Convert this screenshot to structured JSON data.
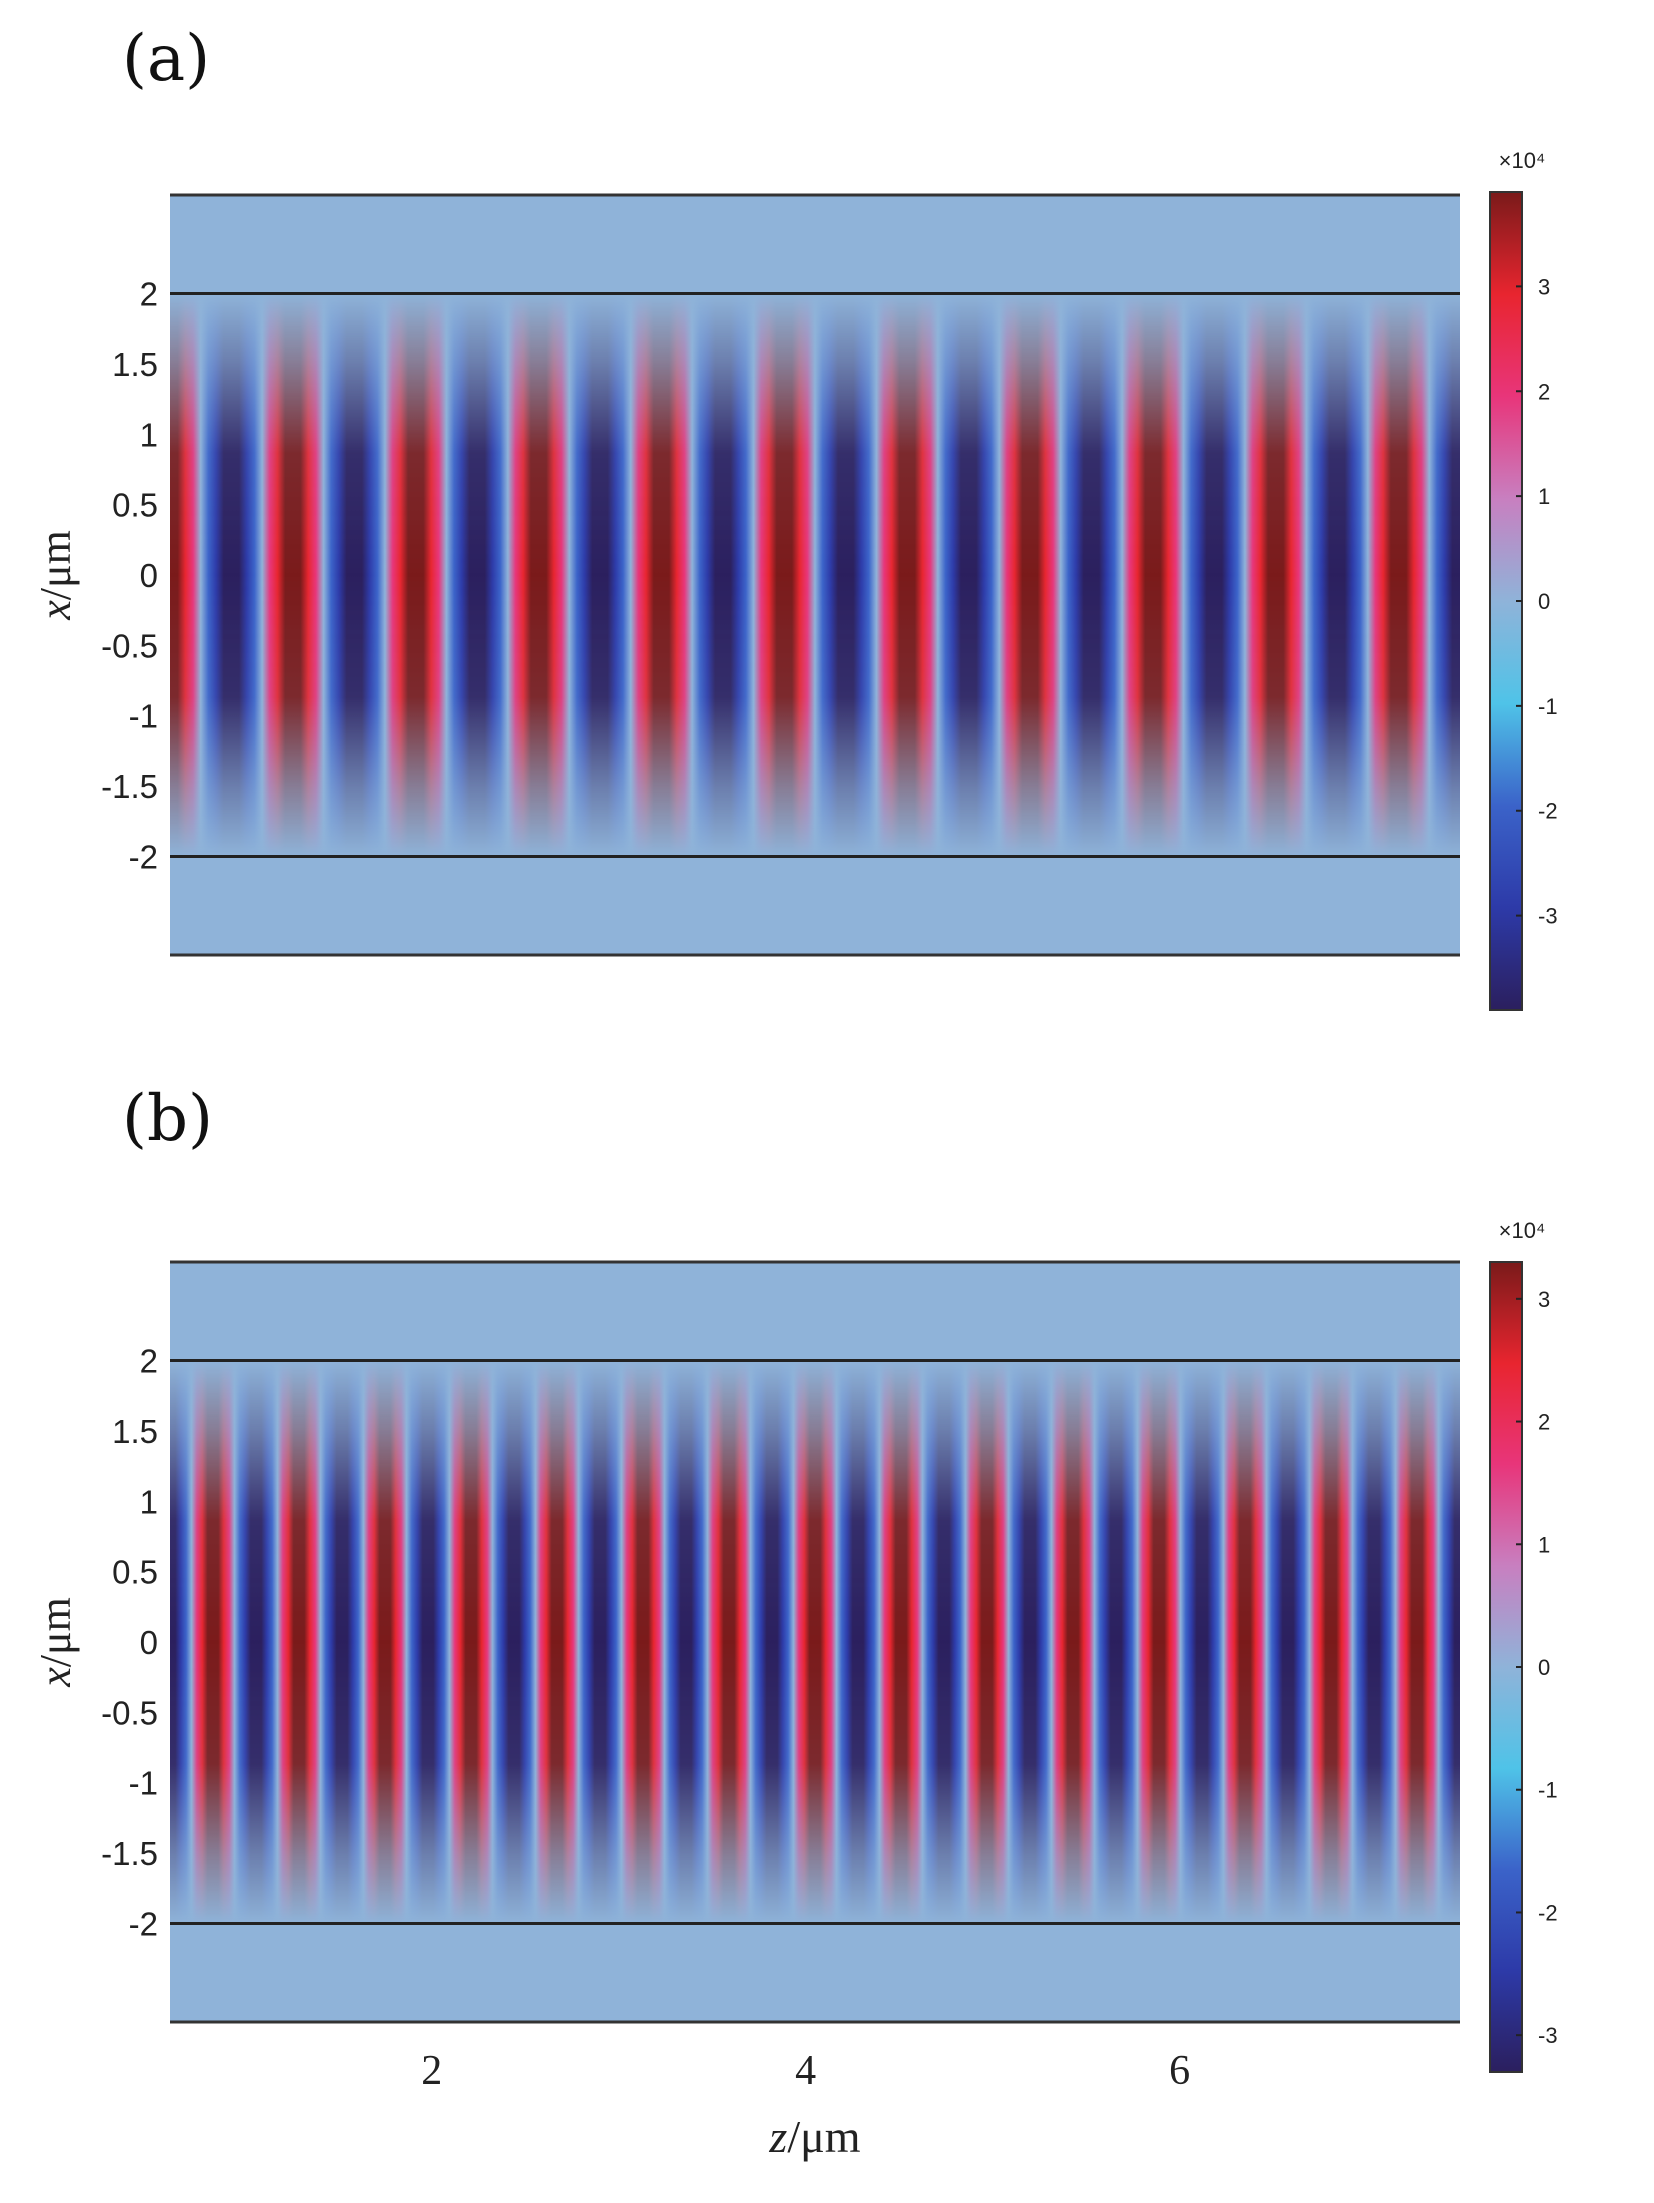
{
  "chart_data": [
    {
      "type": "heatmap",
      "panel_label": "(a)",
      "title": "",
      "xlabel": "",
      "ylabel": "x/μm",
      "ylabel_italic": "x",
      "ylabel_unit": "/μm",
      "x_ticks": [],
      "y_ticks": [
        2,
        1.5,
        1,
        0.5,
        0,
        -0.5,
        -1,
        -1.5,
        -2
      ],
      "y_tick_labels": [
        "2",
        "1.5",
        "1",
        "0.5",
        "0",
        "-0.5",
        "-1",
        "-1.5",
        "-2"
      ],
      "xlim": [
        0.6,
        7.5
      ],
      "ylim": [
        -2.7,
        2.7
      ],
      "waveguide_boundaries": [
        2,
        -2
      ],
      "field_pattern": {
        "periods_shown": 10.5,
        "phase_deg": 0,
        "amplitude": 38000
      },
      "colorbar": {
        "multiplier": "×10⁴",
        "ticks": [
          3,
          2,
          1,
          0,
          -1,
          -2,
          -3
        ],
        "tick_labels": [
          "3",
          "2",
          "1",
          "0",
          "-1",
          "-2",
          "-3"
        ],
        "range": [
          -3.9,
          3.9
        ]
      }
    },
    {
      "type": "heatmap",
      "panel_label": "(b)",
      "title": "",
      "xlabel": "z/μm",
      "xlabel_italic": "z",
      "xlabel_unit": "/μm",
      "ylabel": "x/μm",
      "ylabel_italic": "x",
      "ylabel_unit": "/μm",
      "x_ticks": [
        2,
        4,
        6
      ],
      "x_tick_labels": [
        "2",
        "4",
        "6"
      ],
      "y_ticks": [
        2,
        1.5,
        1,
        0.5,
        0,
        -0.5,
        -1,
        -1.5,
        -2
      ],
      "y_tick_labels": [
        "2",
        "1.5",
        "1",
        "0.5",
        "0",
        "-0.5",
        "-1",
        "-1.5",
        "-2"
      ],
      "xlim": [
        0.6,
        7.5
      ],
      "ylim": [
        -2.7,
        2.7
      ],
      "waveguide_boundaries": [
        2,
        -2
      ],
      "field_pattern": {
        "periods_shown": 15.0,
        "phase_deg": 180,
        "amplitude": 32000
      },
      "colorbar": {
        "multiplier": "×10⁴",
        "ticks": [
          3,
          2,
          1,
          0,
          -1,
          -2,
          -3
        ],
        "tick_labels": [
          "3",
          "2",
          "1",
          "0",
          "-1",
          "-2",
          "-3"
        ],
        "range": [
          -3.3,
          3.3
        ]
      }
    }
  ],
  "colormap": [
    "#2b1f5e",
    "#2d3aa8",
    "#3b63c9",
    "#4fc3e8",
    "#8fb3d9",
    "#c87fc0",
    "#e8357a",
    "#e8252f",
    "#7a1a1a"
  ]
}
